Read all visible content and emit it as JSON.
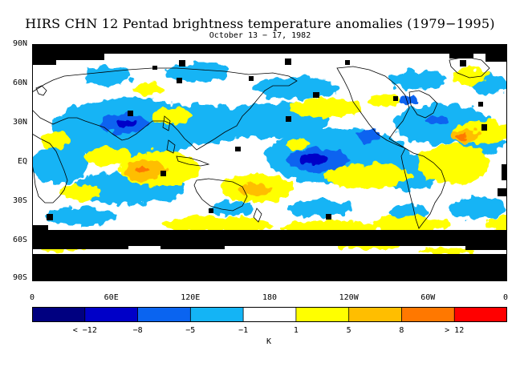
{
  "title": "HIRS CHN 12 Pentad brightness temperature anomalies (1979−1995)",
  "subtitle": "October 13 − 17, 1982",
  "latitude_labels": [
    "90N",
    "60N",
    "30N",
    "EQ",
    "30S",
    "60S",
    "90S"
  ],
  "longitude_labels": [
    "0",
    "60E",
    "120E",
    "180",
    "120W",
    "60W",
    "0"
  ],
  "colorbar": {
    "unit": "K",
    "tick_labels": [
      "< −12",
      "−8",
      "−5",
      "−1",
      "1",
      "5",
      "8",
      "> 12"
    ],
    "colors": [
      "#000080",
      "#0000c8",
      "#0a64f0",
      "#14b4f5",
      "#ffffff",
      "#ffff00",
      "#ffbe00",
      "#ff7800",
      "#ff0000"
    ]
  },
  "map_colors": {
    "missing": "#000000",
    "coastline": "#000000"
  }
}
